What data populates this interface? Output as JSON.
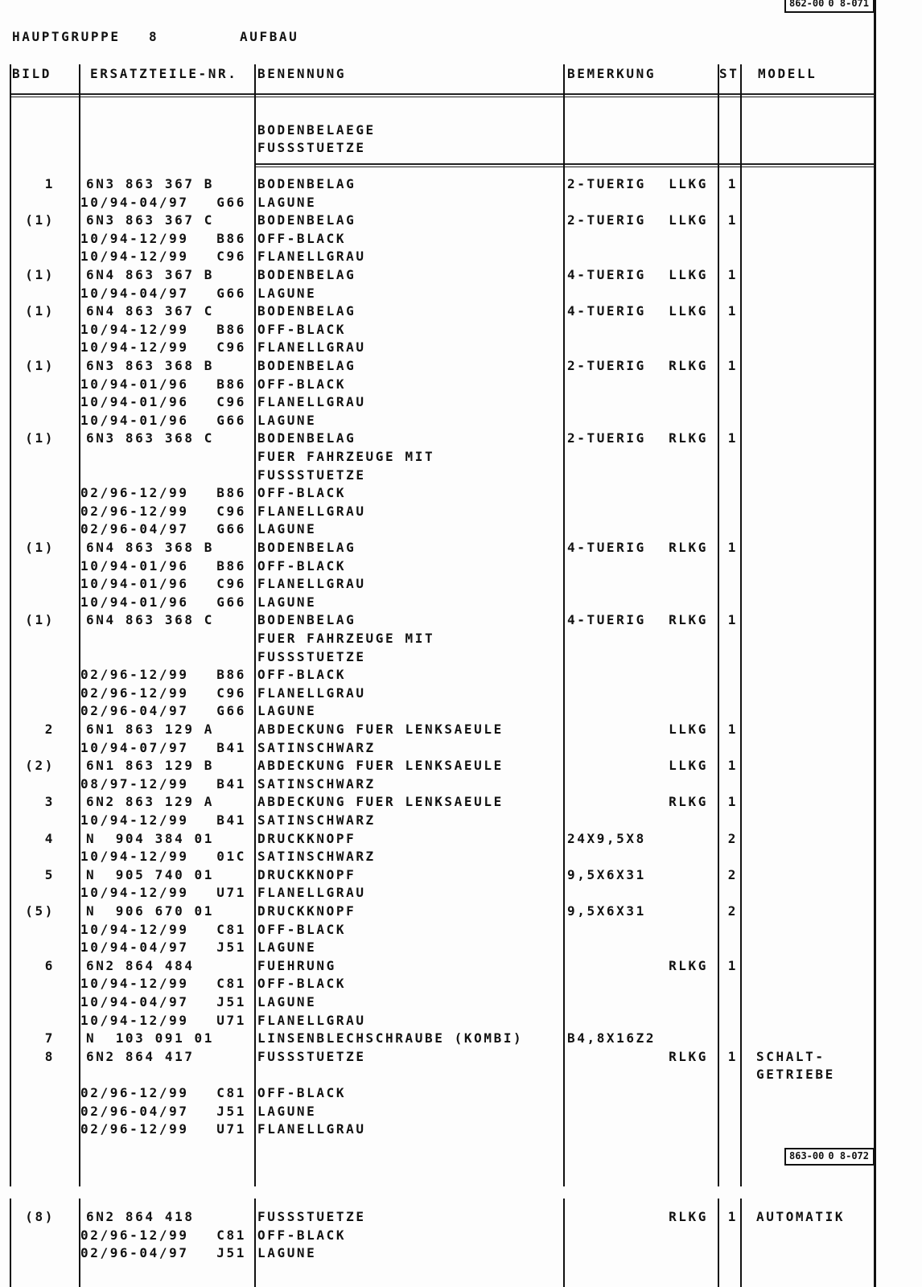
{
  "page_ref_top": {
    "group": "862-00",
    "page": "0 8-071"
  },
  "page_ref_bottom": {
    "group": "863-00",
    "page": "0 8-072"
  },
  "header": {
    "hauptgruppe_label": "HAUPTGRUPPE",
    "hauptgruppe_value": "8",
    "title": "AUFBAU"
  },
  "columns": {
    "bild": "BILD",
    "part": "ERSATZTEILE-NR.",
    "name": "BENENNUNG",
    "remark": "BEMERKUNG",
    "st": "ST",
    "model": "MODELL"
  },
  "section": [
    "BODENBELAEGE",
    "FUSSSTUETZE"
  ],
  "rows": [
    [
      "1",
      "6N3 863 367 B",
      "",
      "",
      "BODENBELAG",
      "2-TUERIG",
      "LLKG",
      "1",
      ""
    ],
    [
      "",
      "",
      "10/94-04/97",
      "G66",
      "LAGUNE",
      "",
      "",
      "",
      ""
    ],
    [
      "(1)",
      "6N3 863 367 C",
      "",
      "",
      "BODENBELAG",
      "2-TUERIG",
      "LLKG",
      "1",
      ""
    ],
    [
      "",
      "",
      "10/94-12/99",
      "B86",
      "OFF-BLACK",
      "",
      "",
      "",
      ""
    ],
    [
      "",
      "",
      "10/94-12/99",
      "C96",
      "FLANELLGRAU",
      "",
      "",
      "",
      ""
    ],
    [
      "(1)",
      "6N4 863 367 B",
      "",
      "",
      "BODENBELAG",
      "4-TUERIG",
      "LLKG",
      "1",
      ""
    ],
    [
      "",
      "",
      "10/94-04/97",
      "G66",
      "LAGUNE",
      "",
      "",
      "",
      ""
    ],
    [
      "(1)",
      "6N4 863 367 C",
      "",
      "",
      "BODENBELAG",
      "4-TUERIG",
      "LLKG",
      "1",
      ""
    ],
    [
      "",
      "",
      "10/94-12/99",
      "B86",
      "OFF-BLACK",
      "",
      "",
      "",
      ""
    ],
    [
      "",
      "",
      "10/94-12/99",
      "C96",
      "FLANELLGRAU",
      "",
      "",
      "",
      ""
    ],
    [
      "(1)",
      "6N3 863 368 B",
      "",
      "",
      "BODENBELAG",
      "2-TUERIG",
      "RLKG",
      "1",
      ""
    ],
    [
      "",
      "",
      "10/94-01/96",
      "B86",
      "OFF-BLACK",
      "",
      "",
      "",
      ""
    ],
    [
      "",
      "",
      "10/94-01/96",
      "C96",
      "FLANELLGRAU",
      "",
      "",
      "",
      ""
    ],
    [
      "",
      "",
      "10/94-01/96",
      "G66",
      "LAGUNE",
      "",
      "",
      "",
      ""
    ],
    [
      "(1)",
      "6N3 863 368 C",
      "",
      "",
      "BODENBELAG",
      "2-TUERIG",
      "RLKG",
      "1",
      ""
    ],
    [
      "",
      "",
      "",
      "",
      "FUER FAHRZEUGE MIT",
      "",
      "",
      "",
      ""
    ],
    [
      "",
      "",
      "",
      "",
      "FUSSSTUETZE",
      "",
      "",
      "",
      ""
    ],
    [
      "",
      "",
      "02/96-12/99",
      "B86",
      "OFF-BLACK",
      "",
      "",
      "",
      ""
    ],
    [
      "",
      "",
      "02/96-12/99",
      "C96",
      "FLANELLGRAU",
      "",
      "",
      "",
      ""
    ],
    [
      "",
      "",
      "02/96-04/97",
      "G66",
      "LAGUNE",
      "",
      "",
      "",
      ""
    ],
    [
      "(1)",
      "6N4 863 368 B",
      "",
      "",
      "BODENBELAG",
      "4-TUERIG",
      "RLKG",
      "1",
      ""
    ],
    [
      "",
      "",
      "10/94-01/96",
      "B86",
      "OFF-BLACK",
      "",
      "",
      "",
      ""
    ],
    [
      "",
      "",
      "10/94-01/96",
      "C96",
      "FLANELLGRAU",
      "",
      "",
      "",
      ""
    ],
    [
      "",
      "",
      "10/94-01/96",
      "G66",
      "LAGUNE",
      "",
      "",
      "",
      ""
    ],
    [
      "(1)",
      "6N4 863 368 C",
      "",
      "",
      "BODENBELAG",
      "4-TUERIG",
      "RLKG",
      "1",
      ""
    ],
    [
      "",
      "",
      "",
      "",
      "FUER FAHRZEUGE MIT",
      "",
      "",
      "",
      ""
    ],
    [
      "",
      "",
      "",
      "",
      "FUSSSTUETZE",
      "",
      "",
      "",
      ""
    ],
    [
      "",
      "",
      "02/96-12/99",
      "B86",
      "OFF-BLACK",
      "",
      "",
      "",
      ""
    ],
    [
      "",
      "",
      "02/96-12/99",
      "C96",
      "FLANELLGRAU",
      "",
      "",
      "",
      ""
    ],
    [
      "",
      "",
      "02/96-04/97",
      "G66",
      "LAGUNE",
      "",
      "",
      "",
      ""
    ],
    [
      "2",
      "6N1 863 129 A",
      "",
      "",
      "ABDECKUNG FUER LENKSAEULE",
      "",
      "LLKG",
      "1",
      ""
    ],
    [
      "",
      "",
      "10/94-07/97",
      "B41",
      "SATINSCHWARZ",
      "",
      "",
      "",
      ""
    ],
    [
      "(2)",
      "6N1 863 129 B",
      "",
      "",
      "ABDECKUNG FUER LENKSAEULE",
      "",
      "LLKG",
      "1",
      ""
    ],
    [
      "",
      "",
      "08/97-12/99",
      "B41",
      "SATINSCHWARZ",
      "",
      "",
      "",
      ""
    ],
    [
      "3",
      "6N2 863 129 A",
      "",
      "",
      "ABDECKUNG FUER LENKSAEULE",
      "",
      "RLKG",
      "1",
      ""
    ],
    [
      "",
      "",
      "10/94-12/99",
      "B41",
      "SATINSCHWARZ",
      "",
      "",
      "",
      ""
    ],
    [
      "4",
      "N  904 384 01",
      "",
      "",
      "DRUCKKNOPF",
      "24X9,5X8",
      "",
      "2",
      ""
    ],
    [
      "",
      "",
      "10/94-12/99",
      "01C",
      "SATINSCHWARZ",
      "",
      "",
      "",
      ""
    ],
    [
      "5",
      "N  905 740 01",
      "",
      "",
      "DRUCKKNOPF",
      "9,5X6X31",
      "",
      "2",
      ""
    ],
    [
      "",
      "",
      "10/94-12/99",
      "U71",
      "FLANELLGRAU",
      "",
      "",
      "",
      ""
    ],
    [
      "(5)",
      "N  906 670 01",
      "",
      "",
      "DRUCKKNOPF",
      "9,5X6X31",
      "",
      "2",
      ""
    ],
    [
      "",
      "",
      "10/94-12/99",
      "C81",
      "OFF-BLACK",
      "",
      "",
      "",
      ""
    ],
    [
      "",
      "",
      "10/94-04/97",
      "J51",
      "LAGUNE",
      "",
      "",
      "",
      ""
    ],
    [
      "6",
      "6N2 864 484",
      "",
      "",
      "FUEHRUNG",
      "",
      "RLKG",
      "1",
      ""
    ],
    [
      "",
      "",
      "10/94-12/99",
      "C81",
      "OFF-BLACK",
      "",
      "",
      "",
      ""
    ],
    [
      "",
      "",
      "10/94-04/97",
      "J51",
      "LAGUNE",
      "",
      "",
      "",
      ""
    ],
    [
      "",
      "",
      "10/94-12/99",
      "U71",
      "FLANELLGRAU",
      "",
      "",
      "",
      ""
    ],
    [
      "7",
      "N  103 091 01",
      "",
      "",
      "LINSENBLECHSCHRAUBE (KOMBI)",
      "B4,8X16Z2",
      "",
      "",
      ""
    ],
    [
      "8",
      "6N2 864 417",
      "",
      "",
      "FUSSSTUETZE",
      "",
      "RLKG",
      "1",
      "SCHALT-"
    ],
    [
      "",
      "",
      "",
      "",
      "",
      "",
      "",
      "",
      "GETRIEBE"
    ],
    [
      "",
      "",
      "02/96-12/99",
      "C81",
      "OFF-BLACK",
      "",
      "",
      "",
      ""
    ],
    [
      "",
      "",
      "02/96-04/97",
      "J51",
      "LAGUNE",
      "",
      "",
      "",
      ""
    ],
    [
      "",
      "",
      "02/96-12/99",
      "U71",
      "FLANELLGRAU",
      "",
      "",
      "",
      ""
    ]
  ],
  "rows_next": [
    [
      "(8)",
      "6N2 864 418",
      "",
      "",
      "FUSSSTUETZE",
      "",
      "RLKG",
      "1",
      "AUTOMATIK"
    ],
    [
      "",
      "",
      "02/96-12/99",
      "C81",
      "OFF-BLACK",
      "",
      "",
      "",
      ""
    ],
    [
      "",
      "",
      "02/96-04/97",
      "J51",
      "LAGUNE",
      "",
      "",
      "",
      ""
    ]
  ]
}
